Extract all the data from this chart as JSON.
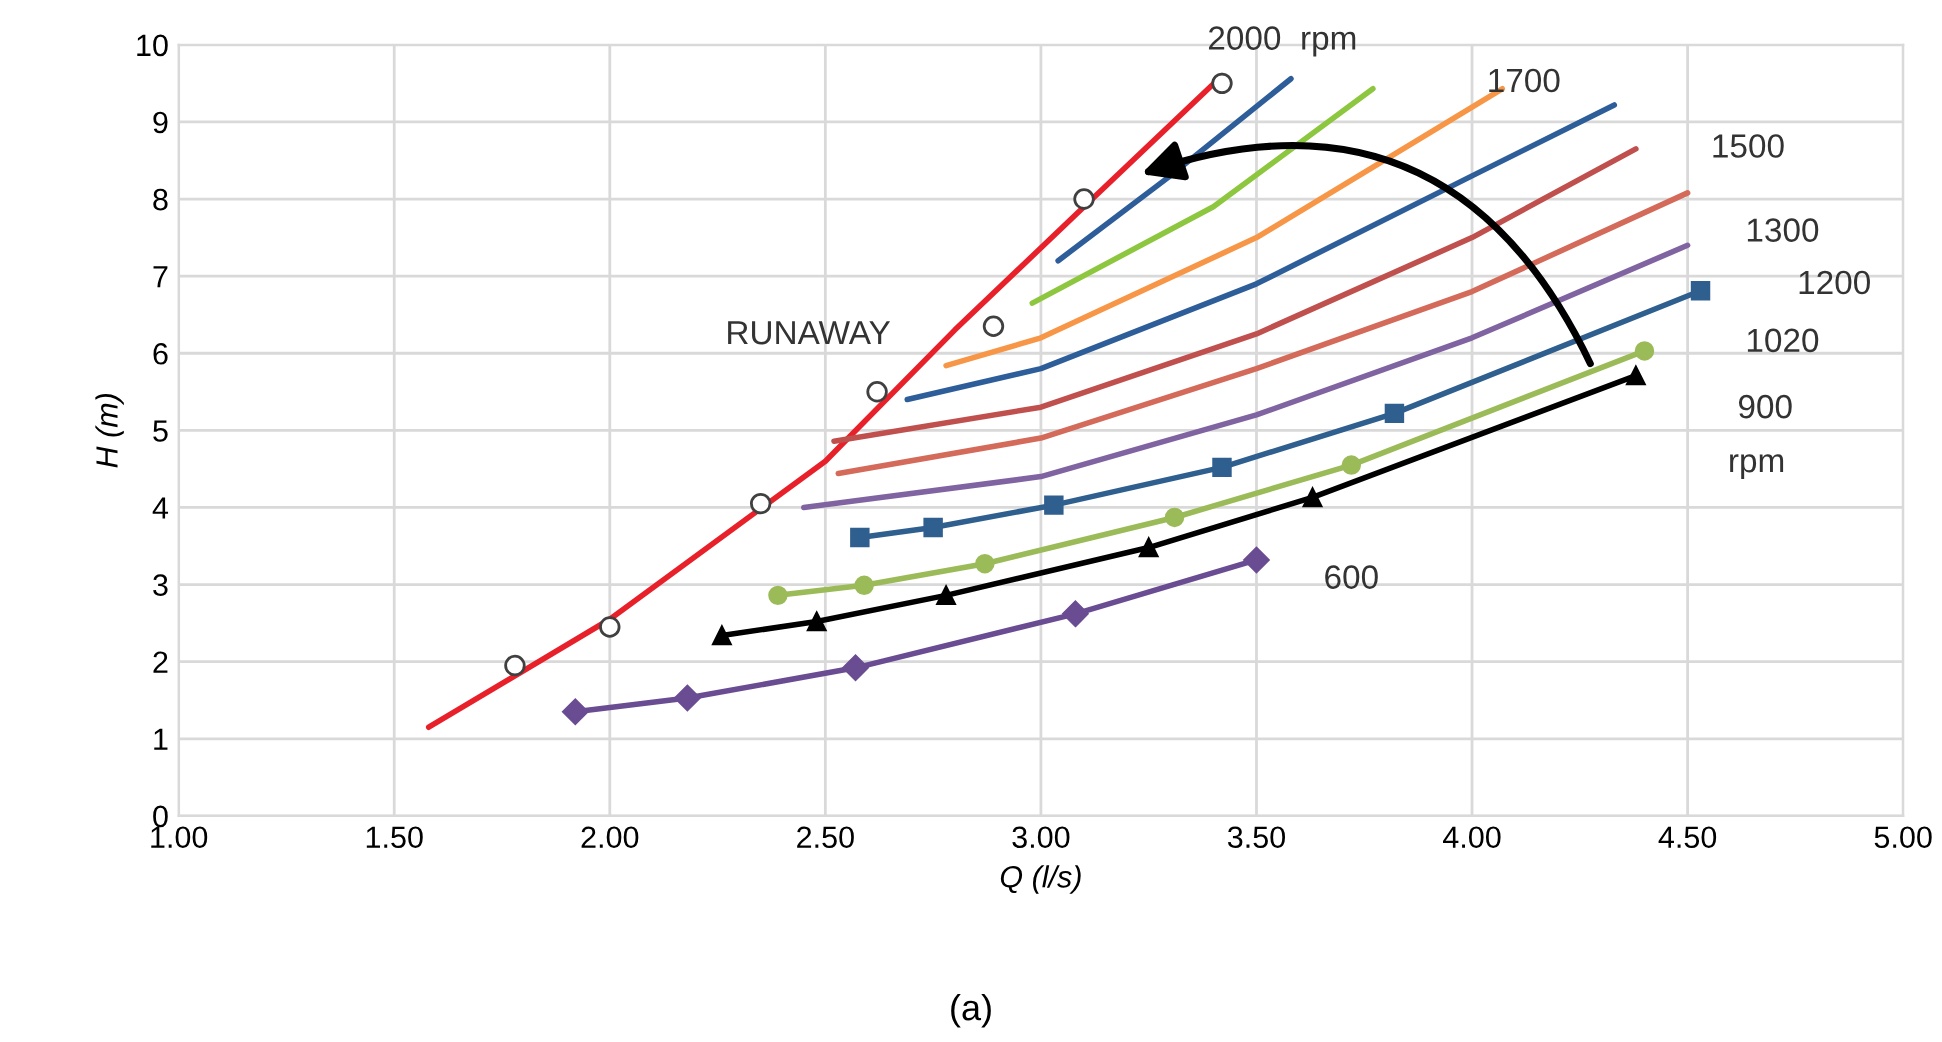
{
  "chart_data": {
    "type": "line",
    "xlabel": "Q (l/s)",
    "ylabel": "H (m)",
    "xlim": [
      1.0,
      5.0
    ],
    "ylim": [
      0,
      10
    ],
    "xticks": [
      {
        "value": 1.0,
        "label": "1.00"
      },
      {
        "value": 1.5,
        "label": "1.50"
      },
      {
        "value": 2.0,
        "label": "2.00"
      },
      {
        "value": 2.5,
        "label": "2.50"
      },
      {
        "value": 3.0,
        "label": "3.00"
      },
      {
        "value": 3.5,
        "label": "3.50"
      },
      {
        "value": 4.0,
        "label": "4.00"
      },
      {
        "value": 4.5,
        "label": "4.50"
      },
      {
        "value": 5.0,
        "label": "5.00"
      }
    ],
    "yticks": [
      0,
      1,
      2,
      3,
      4,
      5,
      6,
      7,
      8,
      9,
      10
    ],
    "grid": true,
    "legend": false,
    "series": [
      {
        "color": "#e8202a",
        "marker": "none",
        "x": [
          1.58,
          2.0,
          2.5,
          2.8,
          3.1,
          3.42
        ],
        "values": [
          1.15,
          2.55,
          4.6,
          6.3,
          7.9,
          9.6
        ]
      },
      {
        "type": "scatter",
        "color": "#404040",
        "marker": "circle",
        "x": [
          1.78,
          2.0,
          2.35,
          2.62,
          2.89,
          3.1,
          3.42
        ],
        "values": [
          1.95,
          2.45,
          4.05,
          5.5,
          6.35,
          8.0,
          9.5
        ]
      },
      {
        "color": "#2e5e9a",
        "marker": "none",
        "x": [
          3.04,
          3.3,
          3.58
        ],
        "values": [
          7.2,
          8.3,
          9.56
        ]
      },
      {
        "color": "#8dc63f",
        "marker": "none",
        "x": [
          2.98,
          3.4,
          3.77
        ],
        "values": [
          6.65,
          7.9,
          9.43
        ]
      },
      {
        "color": "#f79646",
        "marker": "none",
        "x": [
          2.78,
          3.0,
          3.5,
          4.07
        ],
        "values": [
          5.84,
          6.2,
          7.5,
          9.43
        ]
      },
      {
        "color": "#2e5e9a",
        "marker": "none",
        "x": [
          2.69,
          3.0,
          3.5,
          4.0,
          4.33
        ],
        "values": [
          5.4,
          5.8,
          6.9,
          8.3,
          9.22
        ]
      },
      {
        "color": "#c0504d",
        "marker": "none",
        "x": [
          2.52,
          3.0,
          3.5,
          4.0,
          4.38
        ],
        "values": [
          4.86,
          5.3,
          6.25,
          7.5,
          8.65
        ]
      },
      {
        "color": "#d46a5a",
        "marker": "none",
        "x": [
          2.53,
          3.0,
          3.5,
          4.0,
          4.5
        ],
        "values": [
          4.44,
          4.9,
          5.8,
          6.8,
          8.08
        ]
      },
      {
        "color": "#8064a2",
        "marker": "none",
        "x": [
          2.45,
          3.0,
          3.5,
          4.0,
          4.5
        ],
        "values": [
          4.0,
          4.4,
          5.2,
          6.2,
          7.4
        ]
      },
      {
        "color": "#2f5f8f",
        "marker": "square",
        "x": [
          2.58,
          2.75,
          3.03,
          3.42,
          3.82,
          4.53
        ],
        "values": [
          3.61,
          3.74,
          4.03,
          4.52,
          5.22,
          6.81
        ]
      },
      {
        "color": "#9bbb59",
        "marker": "circle",
        "x": [
          2.39,
          2.59,
          2.87,
          3.31,
          3.72,
          4.4
        ],
        "values": [
          2.86,
          2.99,
          3.27,
          3.87,
          4.55,
          6.03
        ]
      },
      {
        "color": "#000000",
        "marker": "triangle",
        "x": [
          2.26,
          2.48,
          2.78,
          3.25,
          3.63,
          4.38
        ],
        "values": [
          2.34,
          2.52,
          2.86,
          3.48,
          4.13,
          5.71
        ]
      },
      {
        "color": "#6a4c93",
        "marker": "diamond",
        "x": [
          1.92,
          2.18,
          2.57,
          3.08,
          3.5
        ],
        "values": [
          1.35,
          1.53,
          1.92,
          2.62,
          3.32
        ]
      }
    ],
    "annotations": [
      "2000  rpm",
      "1700",
      "1500",
      "1300",
      "1200",
      "1020",
      "900",
      "rpm",
      "600",
      "RUNAWAY",
      "(a)"
    ]
  }
}
